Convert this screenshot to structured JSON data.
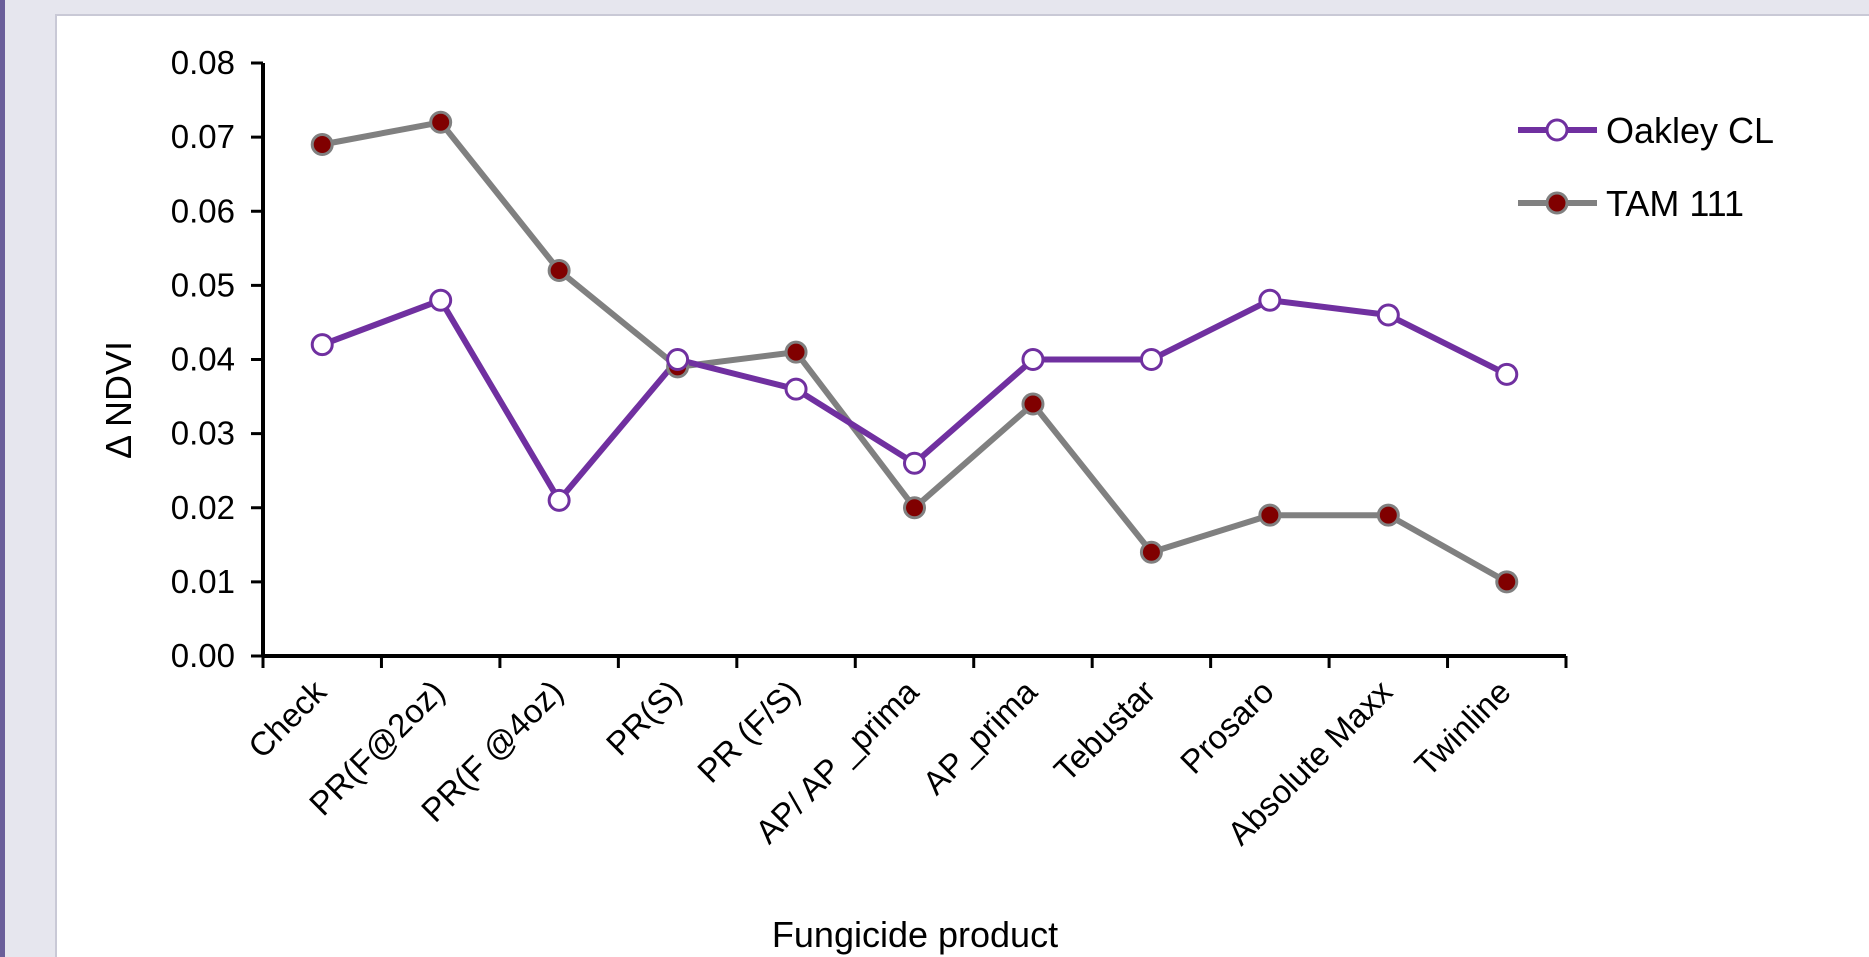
{
  "chart_data": {
    "type": "line",
    "title": "",
    "xlabel": "Fungicide product",
    "ylabel": "Δ NDVI",
    "ylim": [
      0,
      0.08
    ],
    "yticks": [
      "0.00",
      "0.01",
      "0.02",
      "0.03",
      "0.04",
      "0.05",
      "0.06",
      "0.07",
      "0.08"
    ],
    "grid": false,
    "legend_position": "top-right",
    "categories": [
      "Check",
      "PR(F@2oz)",
      "PR(F @4oz)",
      "PR(S)",
      "PR (F/S)",
      "AP/ AP _prima",
      "AP_prima",
      "Tebustar",
      "Prosaro",
      "Absolute Maxx",
      "Twinline"
    ],
    "series": [
      {
        "name": "Oakley CL",
        "color": "#7030a0",
        "marker": "open-circle",
        "values": [
          0.042,
          0.048,
          0.021,
          0.04,
          0.036,
          0.026,
          0.04,
          0.04,
          0.048,
          0.046,
          0.038
        ]
      },
      {
        "name": "TAM 111",
        "color": "#808080",
        "marker": "filled-circle",
        "marker_color": "#800000",
        "values": [
          0.069,
          0.072,
          0.052,
          0.039,
          0.041,
          0.02,
          0.034,
          0.014,
          0.019,
          0.019,
          0.01
        ]
      }
    ]
  }
}
